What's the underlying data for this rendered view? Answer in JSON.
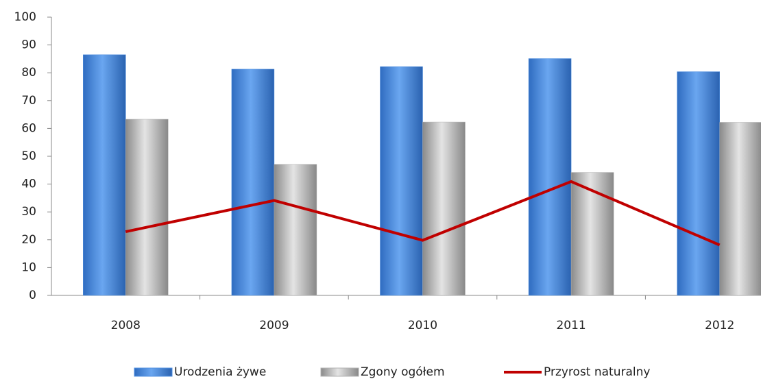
{
  "chart_data": {
    "type": "bar",
    "categories": [
      "2008",
      "2009",
      "2010",
      "2011",
      "2012"
    ],
    "series": [
      {
        "name": "Urodzenia żywe",
        "color": "#4f8fe0",
        "values": [
          86.5,
          81.3,
          82.2,
          85.1,
          80.4
        ]
      },
      {
        "name": "Zgony ogółem",
        "color": "#b0b0b0",
        "values": [
          63.3,
          47.1,
          62.3,
          44.2,
          62.2
        ]
      },
      {
        "name": "Przyrost naturalny",
        "color": "#c00000",
        "type": "line",
        "values": [
          22.9,
          34.1,
          19.8,
          40.9,
          18.1
        ]
      }
    ],
    "ylim": [
      0,
      100
    ],
    "yticks": [
      0,
      10,
      20,
      30,
      40,
      50,
      60,
      70,
      80,
      90,
      100
    ],
    "legend": "bottom"
  }
}
